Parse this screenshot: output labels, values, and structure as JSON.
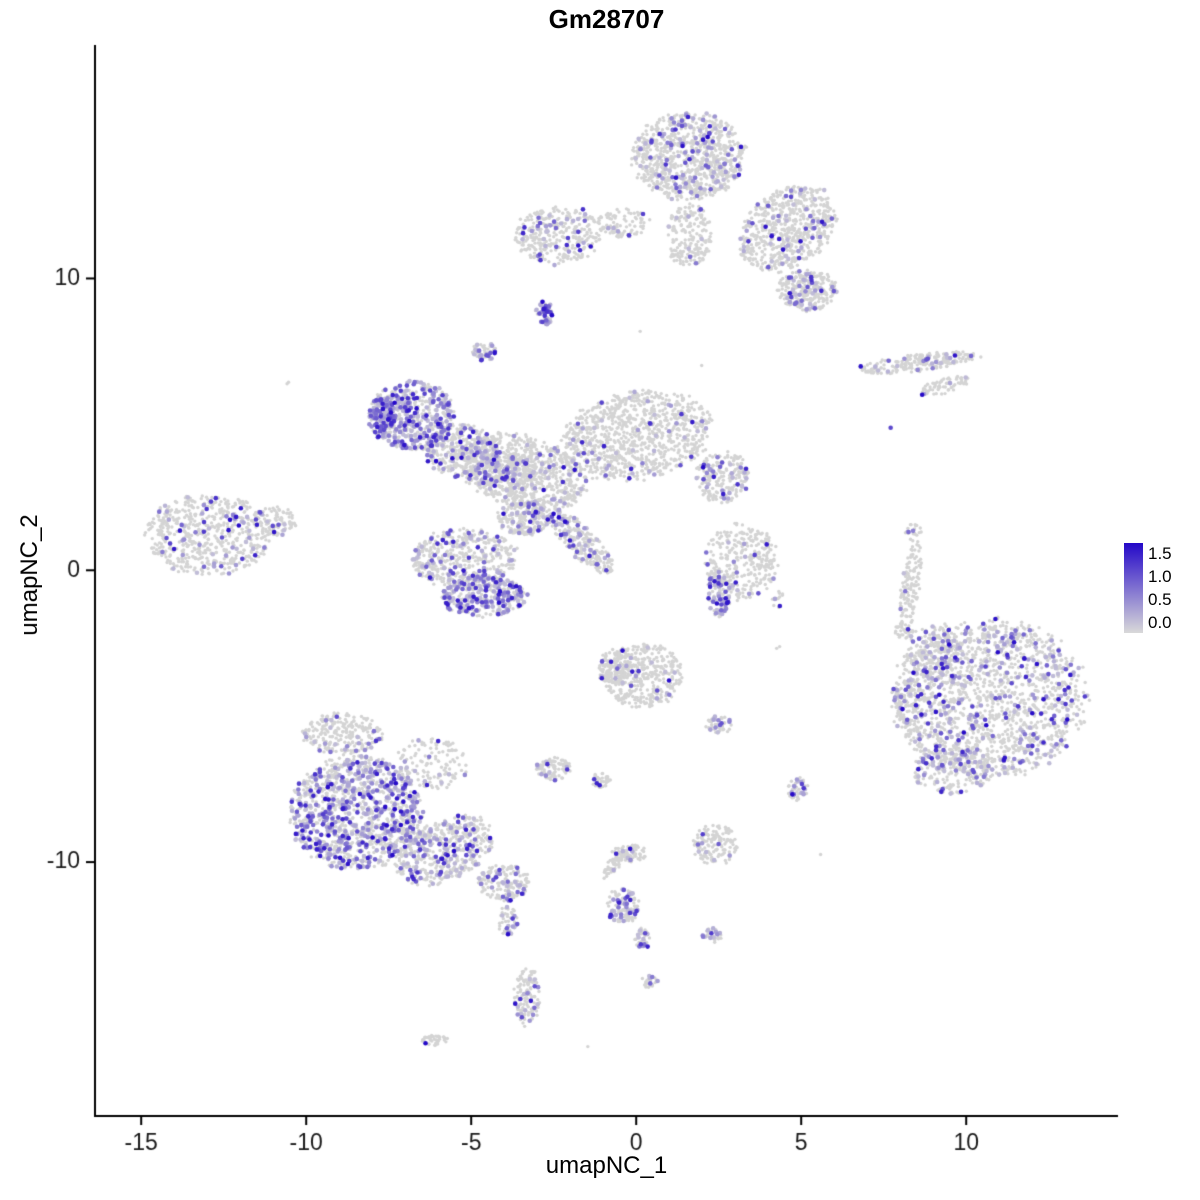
{
  "chart_data": {
    "type": "scatter",
    "subtype": "umap-feature-plot",
    "title": "Gm28707",
    "xlabel": "umapNC_1",
    "ylabel": "umapNC_2",
    "xlim": [
      -16.4,
      14.6
    ],
    "ylim": [
      -18.7,
      18.0
    ],
    "x_ticks": [
      -15,
      -10,
      -5,
      0,
      5,
      10
    ],
    "y_ticks": [
      -10,
      0,
      10
    ],
    "grid": false,
    "legend": {
      "position": "right",
      "ticks": [
        "1.5",
        "1.0",
        "0.5",
        "0.0"
      ],
      "min_value": 0.0,
      "max_value": 1.5
    },
    "colors": {
      "background": "#ffffff",
      "axis": "#000000",
      "tick_text": "#1a1a1a",
      "point_base": "#d4d4d4",
      "gradient_low": "#d9d9d9",
      "gradient_high": "#2408c8"
    },
    "point": {
      "radius_base": 1.7,
      "radius_expr": 2.3
    },
    "clusters": [
      {
        "x": 1.6,
        "y": 14.2,
        "rx": 1.7,
        "ry": 1.5,
        "n": 900,
        "f": 0.1
      },
      {
        "x": 4.6,
        "y": 11.7,
        "rx": 1.6,
        "ry": 1.3,
        "rot": -35,
        "n": 650,
        "f": 0.09
      },
      {
        "x": 5.2,
        "y": 9.6,
        "rx": 0.9,
        "ry": 0.7,
        "n": 280,
        "f": 0.13
      },
      {
        "x": 1.6,
        "y": 11.5,
        "rx": 0.7,
        "ry": 1.1,
        "n": 200,
        "f": 0.05
      },
      {
        "x": -2.4,
        "y": 11.5,
        "rx": 1.3,
        "ry": 1.0,
        "n": 320,
        "f": 0.12
      },
      {
        "x": -0.4,
        "y": 11.9,
        "rx": 0.8,
        "ry": 0.5,
        "n": 90,
        "f": 0.05
      },
      {
        "x": -2.8,
        "y": 8.8,
        "rx": 0.28,
        "ry": 0.4,
        "n": 45,
        "f": 0.8
      },
      {
        "x": -4.6,
        "y": 7.5,
        "rx": 0.38,
        "ry": 0.3,
        "n": 55,
        "f": 0.45
      },
      {
        "x": 8.5,
        "y": 7.1,
        "rx": 1.9,
        "ry": 0.3,
        "rot": -7,
        "n": 230,
        "f": 0.12
      },
      {
        "x": 9.3,
        "y": 6.3,
        "rx": 0.8,
        "ry": 0.25,
        "rot": -15,
        "n": 70,
        "f": 0.1
      },
      {
        "x": 7.7,
        "y": 4.9,
        "rx": 0.05,
        "ry": 0.05,
        "n": 1,
        "f": 1
      },
      {
        "x": -6.8,
        "y": 5.3,
        "rx": 1.3,
        "ry": 1.2,
        "n": 500,
        "f": 0.45
      },
      {
        "x": -7.6,
        "y": 5.4,
        "rx": 0.4,
        "ry": 0.5,
        "n": 80,
        "f": 0.85
      },
      {
        "x": -5.3,
        "y": 4.1,
        "rx": 1.1,
        "ry": 0.9,
        "n": 350,
        "f": 0.25
      },
      {
        "x": -4.0,
        "y": 3.3,
        "rx": 0.9,
        "ry": 0.8,
        "n": 250,
        "f": 0.2
      },
      {
        "x": 0.0,
        "y": 4.6,
        "rx": 2.3,
        "ry": 1.5,
        "rot": -10,
        "n": 950,
        "f": 0.05
      },
      {
        "x": 2.6,
        "y": 3.2,
        "rx": 0.8,
        "ry": 0.9,
        "n": 220,
        "f": 0.15
      },
      {
        "x": -3.5,
        "y": 3.4,
        "rx": 2.0,
        "ry": 1.2,
        "rot": 15,
        "n": 800,
        "f": 0.08
      },
      {
        "x": -1.7,
        "y": 1.0,
        "rx": 1.3,
        "ry": 0.5,
        "rot": 45,
        "n": 250,
        "f": 0.18
      },
      {
        "x": -5.2,
        "y": 0.4,
        "rx": 1.6,
        "ry": 1.0,
        "n": 450,
        "f": 0.18
      },
      {
        "x": -4.6,
        "y": -0.9,
        "rx": 1.3,
        "ry": 0.7,
        "n": 350,
        "f": 0.45
      },
      {
        "x": -3.4,
        "y": 1.8,
        "rx": 0.8,
        "ry": 0.6,
        "n": 200,
        "f": 0.2
      },
      {
        "x": -13.0,
        "y": 1.2,
        "rx": 1.9,
        "ry": 1.4,
        "n": 600,
        "f": 0.09
      },
      {
        "x": -11.0,
        "y": 1.7,
        "rx": 0.7,
        "ry": 0.5,
        "n": 100,
        "f": 0.15
      },
      {
        "x": 3.2,
        "y": 0.3,
        "rx": 1.1,
        "ry": 1.3,
        "n": 320,
        "f": 0.04
      },
      {
        "x": 2.5,
        "y": -0.8,
        "rx": 0.35,
        "ry": 0.8,
        "n": 100,
        "f": 0.45
      },
      {
        "x": 4.3,
        "y": -1.0,
        "rx": 0.2,
        "ry": 0.3,
        "n": 12,
        "f": 0.4
      },
      {
        "x": 8.3,
        "y": -0.6,
        "rx": 0.28,
        "ry": 1.6,
        "rot": 8,
        "n": 130,
        "f": 0.03
      },
      {
        "x": 8.4,
        "y": 1.3,
        "rx": 0.25,
        "ry": 0.3,
        "n": 25,
        "f": 0.1
      },
      {
        "x": 10.7,
        "y": -4.4,
        "rx": 2.9,
        "ry": 2.7,
        "n": 1700,
        "f": 0.17
      },
      {
        "x": 9.0,
        "y": -2.8,
        "rx": 0.9,
        "ry": 0.9,
        "n": 200,
        "f": 0.12
      },
      {
        "x": 9.6,
        "y": -6.9,
        "rx": 1.2,
        "ry": 0.8,
        "n": 200,
        "f": 0.2
      },
      {
        "x": 8.3,
        "y": -4.5,
        "rx": 0.5,
        "ry": 0.8,
        "n": 100,
        "f": 0.1
      },
      {
        "x": 8.1,
        "y": -2.1,
        "rx": 0.3,
        "ry": 0.25,
        "n": 25,
        "f": 0.05
      },
      {
        "x": 0.2,
        "y": -3.6,
        "rx": 1.2,
        "ry": 1.1,
        "n": 420,
        "f": 0.07
      },
      {
        "x": -0.7,
        "y": -3.3,
        "rx": 0.5,
        "ry": 0.6,
        "n": 120,
        "f": 0.05
      },
      {
        "x": -2.5,
        "y": -6.8,
        "rx": 0.5,
        "ry": 0.4,
        "n": 90,
        "f": 0.1
      },
      {
        "x": -1.1,
        "y": -7.2,
        "rx": 0.3,
        "ry": 0.25,
        "n": 40,
        "f": 0.1
      },
      {
        "x": 2.5,
        "y": -5.3,
        "rx": 0.4,
        "ry": 0.3,
        "n": 50,
        "f": 0.12
      },
      {
        "x": 4.9,
        "y": -7.5,
        "rx": 0.3,
        "ry": 0.4,
        "n": 45,
        "f": 0.25
      },
      {
        "x": -8.9,
        "y": -5.6,
        "rx": 1.2,
        "ry": 0.7,
        "n": 250,
        "f": 0.1
      },
      {
        "x": -8.5,
        "y": -8.3,
        "rx": 2.0,
        "ry": 1.9,
        "n": 1200,
        "f": 0.36
      },
      {
        "x": -5.8,
        "y": -9.6,
        "rx": 1.6,
        "ry": 1.0,
        "rot": -25,
        "n": 500,
        "f": 0.22
      },
      {
        "x": -4.0,
        "y": -10.7,
        "rx": 0.8,
        "ry": 0.6,
        "n": 160,
        "f": 0.18
      },
      {
        "x": -6.2,
        "y": -6.6,
        "rx": 1.1,
        "ry": 0.9,
        "n": 140,
        "f": 0.12
      },
      {
        "x": -3.9,
        "y": -12.0,
        "rx": 0.3,
        "ry": 0.5,
        "n": 45,
        "f": 0.25
      },
      {
        "x": -3.3,
        "y": -14.6,
        "rx": 0.4,
        "ry": 1.0,
        "n": 130,
        "f": 0.22
      },
      {
        "x": -0.4,
        "y": -11.5,
        "rx": 0.5,
        "ry": 0.6,
        "n": 110,
        "f": 0.3
      },
      {
        "x": -0.7,
        "y": -10.1,
        "rx": 0.55,
        "ry": 0.2,
        "rot": -50,
        "n": 50,
        "f": 0.05
      },
      {
        "x": -0.2,
        "y": -9.7,
        "rx": 0.55,
        "ry": 0.3,
        "n": 70,
        "f": 0.08
      },
      {
        "x": 0.2,
        "y": -12.6,
        "rx": 0.25,
        "ry": 0.35,
        "n": 35,
        "f": 0.3
      },
      {
        "x": 2.4,
        "y": -9.4,
        "rx": 0.7,
        "ry": 0.7,
        "n": 140,
        "f": 0.12
      },
      {
        "x": 2.3,
        "y": -12.5,
        "rx": 0.3,
        "ry": 0.25,
        "n": 30,
        "f": 0.35
      },
      {
        "x": 0.4,
        "y": -14.1,
        "rx": 0.25,
        "ry": 0.2,
        "n": 28,
        "f": 0.3
      },
      {
        "x": -6.1,
        "y": -16.1,
        "rx": 0.4,
        "ry": 0.18,
        "n": 40,
        "f": 0.05
      },
      {
        "x": -10.6,
        "y": 6.4,
        "rx": 0.1,
        "ry": 0.1,
        "n": 2,
        "f": 0
      },
      {
        "x": 0.1,
        "y": 8.2,
        "rx": 0.05,
        "ry": 0.05,
        "n": 1,
        "f": 0
      },
      {
        "x": 2.0,
        "y": 7.0,
        "rx": 0.05,
        "ry": 0.05,
        "n": 1,
        "f": 0
      },
      {
        "x": 4.3,
        "y": -2.6,
        "rx": 0.15,
        "ry": 0.1,
        "n": 2,
        "f": 0
      },
      {
        "x": 5.6,
        "y": -9.7,
        "rx": 0.05,
        "ry": 0.05,
        "n": 1,
        "f": 0
      },
      {
        "x": -1.5,
        "y": -16.3,
        "rx": 0.05,
        "ry": 0.05,
        "n": 1,
        "f": 0
      }
    ]
  }
}
